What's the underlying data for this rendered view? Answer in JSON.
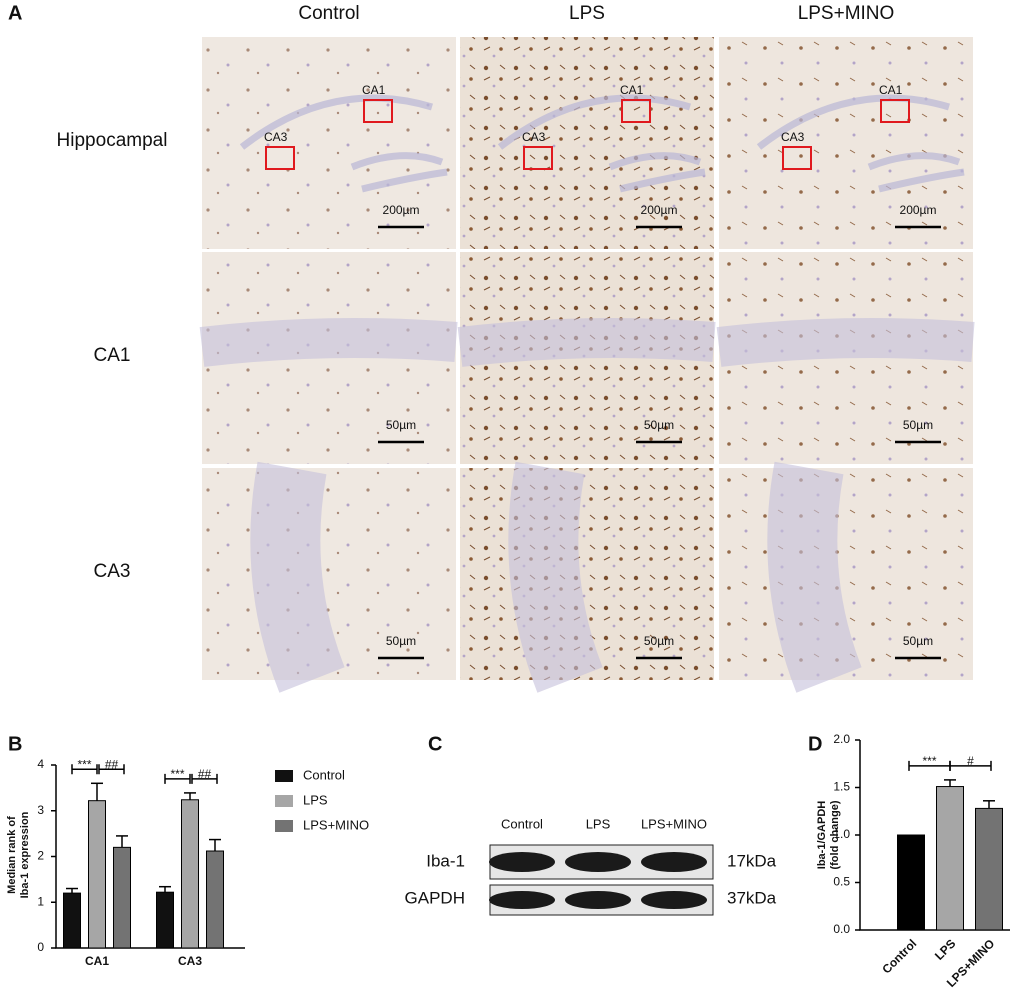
{
  "panel_letters": [
    "A",
    "B",
    "C",
    "D"
  ],
  "histology": {
    "columns": [
      "Control",
      "LPS",
      "LPS+MINO"
    ],
    "rows": [
      "Hippocampal",
      "CA1",
      "CA3"
    ],
    "region_labels": [
      "CA1",
      "CA3"
    ],
    "scale_bars": [
      "200µm",
      "50µm",
      "50µm"
    ]
  },
  "blot": {
    "columns": [
      "Control",
      "LPS",
      "LPS+MINO"
    ],
    "rows": [
      {
        "label": "Iba-1",
        "size": "17kDa"
      },
      {
        "label": "GAPDH",
        "size": "37kDa"
      }
    ]
  },
  "chart_data": [
    {
      "type": "bar",
      "ylabel": [
        "Median rank of",
        "Iba-1 expression"
      ],
      "categories": [
        "CA1",
        "CA3"
      ],
      "series": [
        {
          "name": "Control",
          "color": "#111111",
          "values": [
            1.2,
            1.22
          ],
          "errors": [
            0.1,
            0.12
          ]
        },
        {
          "name": "LPS",
          "color": "#a6a6a6",
          "values": [
            3.22,
            3.24
          ],
          "errors": [
            0.38,
            0.15
          ]
        },
        {
          "name": "LPS+MINO",
          "color": "#737373",
          "values": [
            2.2,
            2.12
          ],
          "errors": [
            0.25,
            0.25
          ]
        }
      ],
      "ylim": [
        0,
        4
      ],
      "yticks": [
        0,
        1,
        2,
        3,
        4
      ],
      "significance": [
        [
          "***",
          "##"
        ],
        [
          "***",
          "##"
        ]
      ]
    },
    {
      "type": "bar",
      "ylabel": [
        "Iba-1/GAPDH",
        "(fold change)"
      ],
      "categories": [
        "Control",
        "LPS",
        "LPS+MINO"
      ],
      "values": [
        1.0,
        1.51,
        1.28
      ],
      "errors": [
        null,
        0.07,
        0.08
      ],
      "colors": [
        "#000000",
        "#a6a6a6",
        "#737373"
      ],
      "ylim": [
        0,
        2
      ],
      "yticks": [
        {
          "value": 0,
          "label": "0.0"
        },
        {
          "value": 0.5,
          "label": "0.5"
        },
        {
          "value": 1,
          "label": "1.0"
        },
        {
          "value": 1.5,
          "label": "1.5"
        },
        {
          "value": 2,
          "label": "2.0"
        }
      ],
      "significance": [
        "***",
        "#"
      ]
    }
  ]
}
